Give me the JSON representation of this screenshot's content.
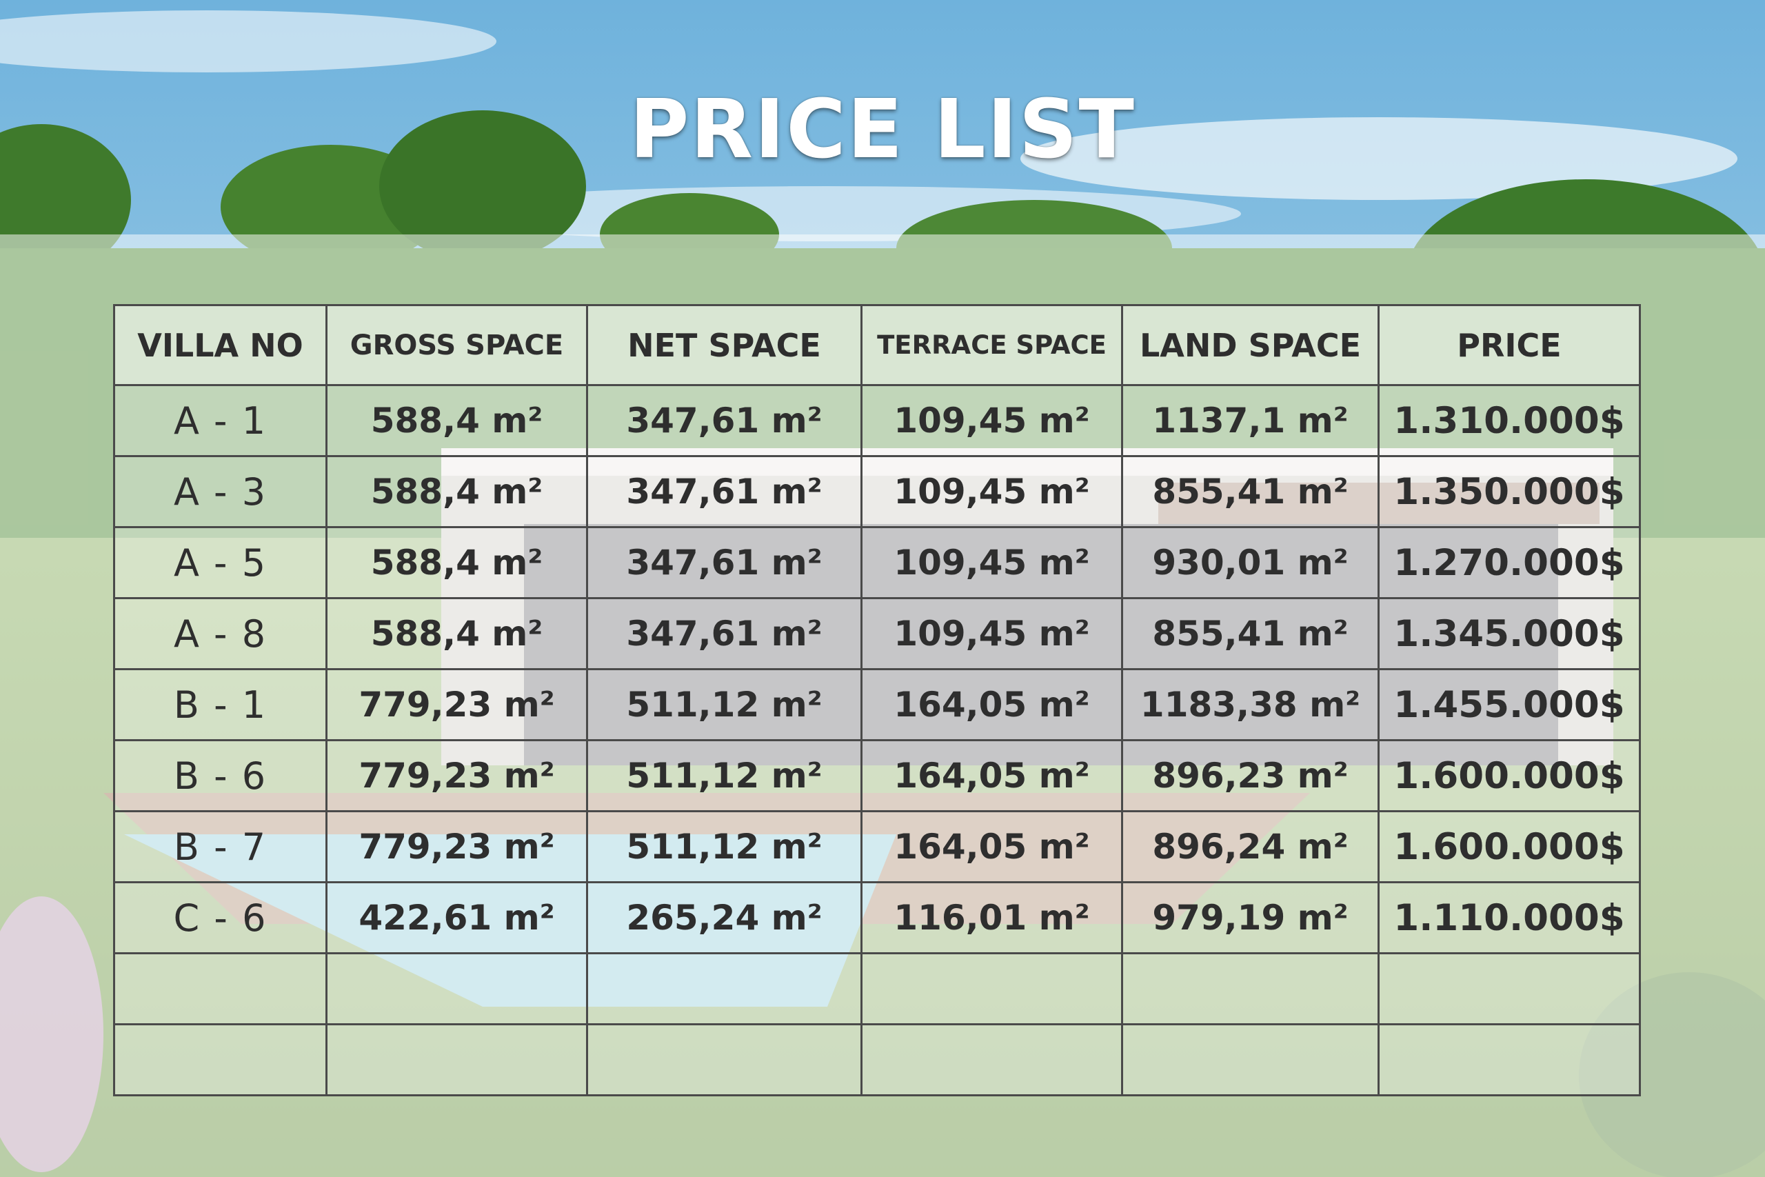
{
  "title": "PRICE LIST",
  "table": {
    "headers": [
      "VILLA NO",
      "GROSS SPACE",
      "NET SPACE",
      "TERRACE SPACE",
      "LAND SPACE",
      "PRICE"
    ],
    "rows": [
      [
        "A - 1",
        "588,4 m²",
        "347,61 m²",
        "109,45 m²",
        "1137,1 m²",
        "1.310.000$"
      ],
      [
        "A - 3",
        "588,4 m²",
        "347,61 m²",
        "109,45 m²",
        "855,41 m²",
        "1.350.000$"
      ],
      [
        "A - 5",
        "588,4 m²",
        "347,61 m²",
        "109,45 m²",
        "930,01 m²",
        "1.270.000$"
      ],
      [
        "A - 8",
        "588,4 m²",
        "347,61 m²",
        "109,45 m²",
        "855,41 m²",
        "1.345.000$"
      ],
      [
        "B - 1",
        "779,23 m²",
        "511,12 m²",
        "164,05 m²",
        "1183,38 m²",
        "1.455.000$"
      ],
      [
        "B - 6",
        "779,23 m²",
        "511,12 m²",
        "164,05 m²",
        "896,23 m²",
        "1.600.000$"
      ],
      [
        "B - 7",
        "779,23 m²",
        "511,12 m²",
        "164,05 m²",
        "896,24 m²",
        "1.600.000$"
      ],
      [
        "C - 6",
        "422,61 m²",
        "265,24 m²",
        "116,01 m²",
        "979,19 m²",
        "1.110.000$"
      ],
      [
        "",
        "",
        "",
        "",
        "",
        ""
      ],
      [
        "",
        "",
        "",
        "",
        "",
        ""
      ]
    ]
  },
  "colors": {
    "sky": "#8fc3e2",
    "grass": "#7fa35a",
    "trees": "#3f7a2c",
    "border": "#4a4a4a",
    "text": "#2e2e2e",
    "title": "#ffffff"
  }
}
